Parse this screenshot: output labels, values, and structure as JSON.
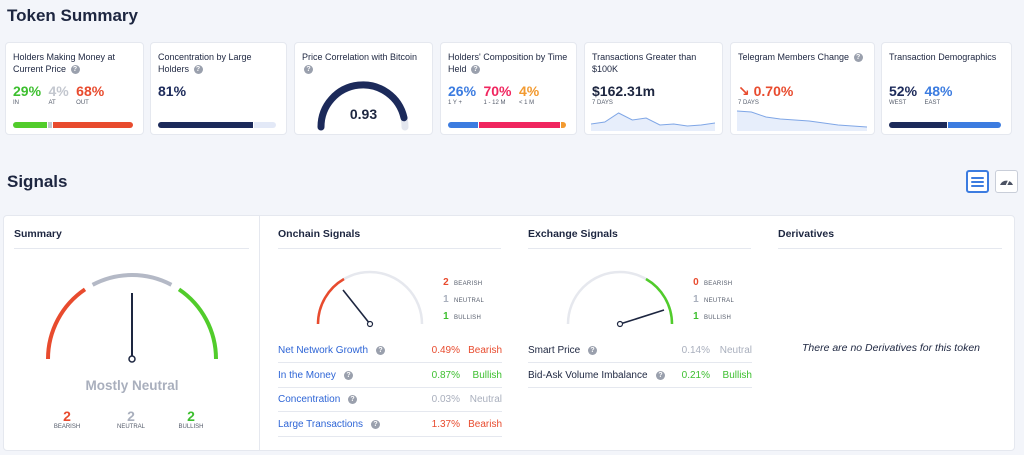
{
  "token_summary": {
    "title": "Token Summary",
    "cards": [
      {
        "title": "Holders Making Money at Current Price",
        "values": [
          {
            "v": "29%",
            "l": "IN",
            "color": "#3dbf2f"
          },
          {
            "v": "4%",
            "l": "AT",
            "color": "#c3c7cf"
          },
          {
            "v": "68%",
            "l": "OUT",
            "color": "#e84b2e"
          }
        ],
        "bar": [
          {
            "pct": 29,
            "color": "#51cc2b"
          },
          {
            "pct": 3,
            "color": "#c3c7cf"
          },
          {
            "pct": 68,
            "color": "#e84b2e"
          }
        ]
      },
      {
        "title": "Concentration by Large Holders",
        "value": "81%",
        "bar": [
          {
            "pct": 81,
            "color": "#1c2a5a"
          },
          {
            "pct": 19,
            "color": "#e3e9f7"
          }
        ]
      },
      {
        "title": "Price Correlation with Bitcoin",
        "value": "0.93",
        "gauge_level": 0.93
      },
      {
        "title": "Holders' Composition by Time Held",
        "values": [
          {
            "v": "26%",
            "l": "1 Y +",
            "color": "#3c7ce0"
          },
          {
            "v": "70%",
            "l": "1 - 12 M",
            "color": "#f0265f"
          },
          {
            "v": "4%",
            "l": "< 1 M",
            "color": "#f29a30"
          }
        ],
        "bar": [
          {
            "pct": 26,
            "color": "#3c7ce0"
          },
          {
            "pct": 70,
            "color": "#f0265f"
          },
          {
            "pct": 4,
            "color": "#f29a30"
          }
        ]
      },
      {
        "title": "Transactions Greater than $100K",
        "value": "$162.31m",
        "sub": "7 DAYS",
        "spark": [
          0.25,
          0.35,
          0.8,
          0.45,
          0.55,
          0.2,
          0.25,
          0.15,
          0.2,
          0.3
        ]
      },
      {
        "title": "Telegram Members Change",
        "value": "0.70%",
        "sub": "7 DAYS",
        "spark": [
          0.9,
          0.85,
          0.6,
          0.5,
          0.45,
          0.4,
          0.3,
          0.2,
          0.15,
          0.1
        ]
      },
      {
        "title": "Transaction Demographics",
        "values": [
          {
            "v": "52%",
            "l": "WEST",
            "color": "#1c2a5a"
          },
          {
            "v": "48%",
            "l": "EAST",
            "color": "#3c7ce0"
          }
        ],
        "bar": [
          {
            "pct": 52,
            "color": "#1c2a5a"
          },
          {
            "pct": 48,
            "color": "#3c7ce0"
          }
        ]
      }
    ]
  },
  "signals": {
    "title": "Signals",
    "summary": {
      "title": "Summary",
      "verdict": "Mostly Neutral",
      "counts": [
        {
          "n": "2",
          "label": "BEARISH",
          "color": "#e84b2e"
        },
        {
          "n": "2",
          "label": "NEUTRAL",
          "color": "#a9afbd"
        },
        {
          "n": "2",
          "label": "BULLISH",
          "color": "#3dbf2f"
        }
      ]
    },
    "onchain": {
      "title": "Onchain Signals",
      "bearish": "2",
      "neutral": "1",
      "bullish": "1",
      "bearish_label": "BEARISH",
      "neutral_label": "NEUTRAL",
      "bullish_label": "BULLISH",
      "rows": [
        {
          "name": "Net Network Growth",
          "pct": "0.49%",
          "sent": "Bearish",
          "color": "#e84b2e"
        },
        {
          "name": "In the Money",
          "pct": "0.87%",
          "sent": "Bullish",
          "color": "#3dbf2f"
        },
        {
          "name": "Concentration",
          "pct": "0.03%",
          "sent": "Neutral",
          "color": "#a9afbd"
        },
        {
          "name": "Large Transactions",
          "pct": "1.37%",
          "sent": "Bearish",
          "color": "#e84b2e"
        }
      ]
    },
    "exchange": {
      "title": "Exchange Signals",
      "bearish": "0",
      "neutral": "1",
      "bullish": "1",
      "bearish_label": "BEARISH",
      "neutral_label": "NEUTRAL",
      "bullish_label": "BULLISH",
      "rows": [
        {
          "name": "Smart Price",
          "pct": "0.14%",
          "sent": "Neutral",
          "color": "#a9afbd"
        },
        {
          "name": "Bid-Ask Volume Imbalance",
          "pct": "0.21%",
          "sent": "Bullish",
          "color": "#3dbf2f"
        }
      ]
    },
    "derivatives": {
      "title": "Derivatives",
      "empty_text": "There are no Derivatives for this token"
    }
  },
  "icons": {
    "list_view": "list-icon",
    "gauge_view": "gauge-icon",
    "info": "question-icon"
  },
  "colors": {
    "bearish": "#e84b2e",
    "neutral": "#a9afbd",
    "bullish": "#3dbf2f",
    "link": "#2e65d6",
    "navy": "#1c2a5a"
  }
}
